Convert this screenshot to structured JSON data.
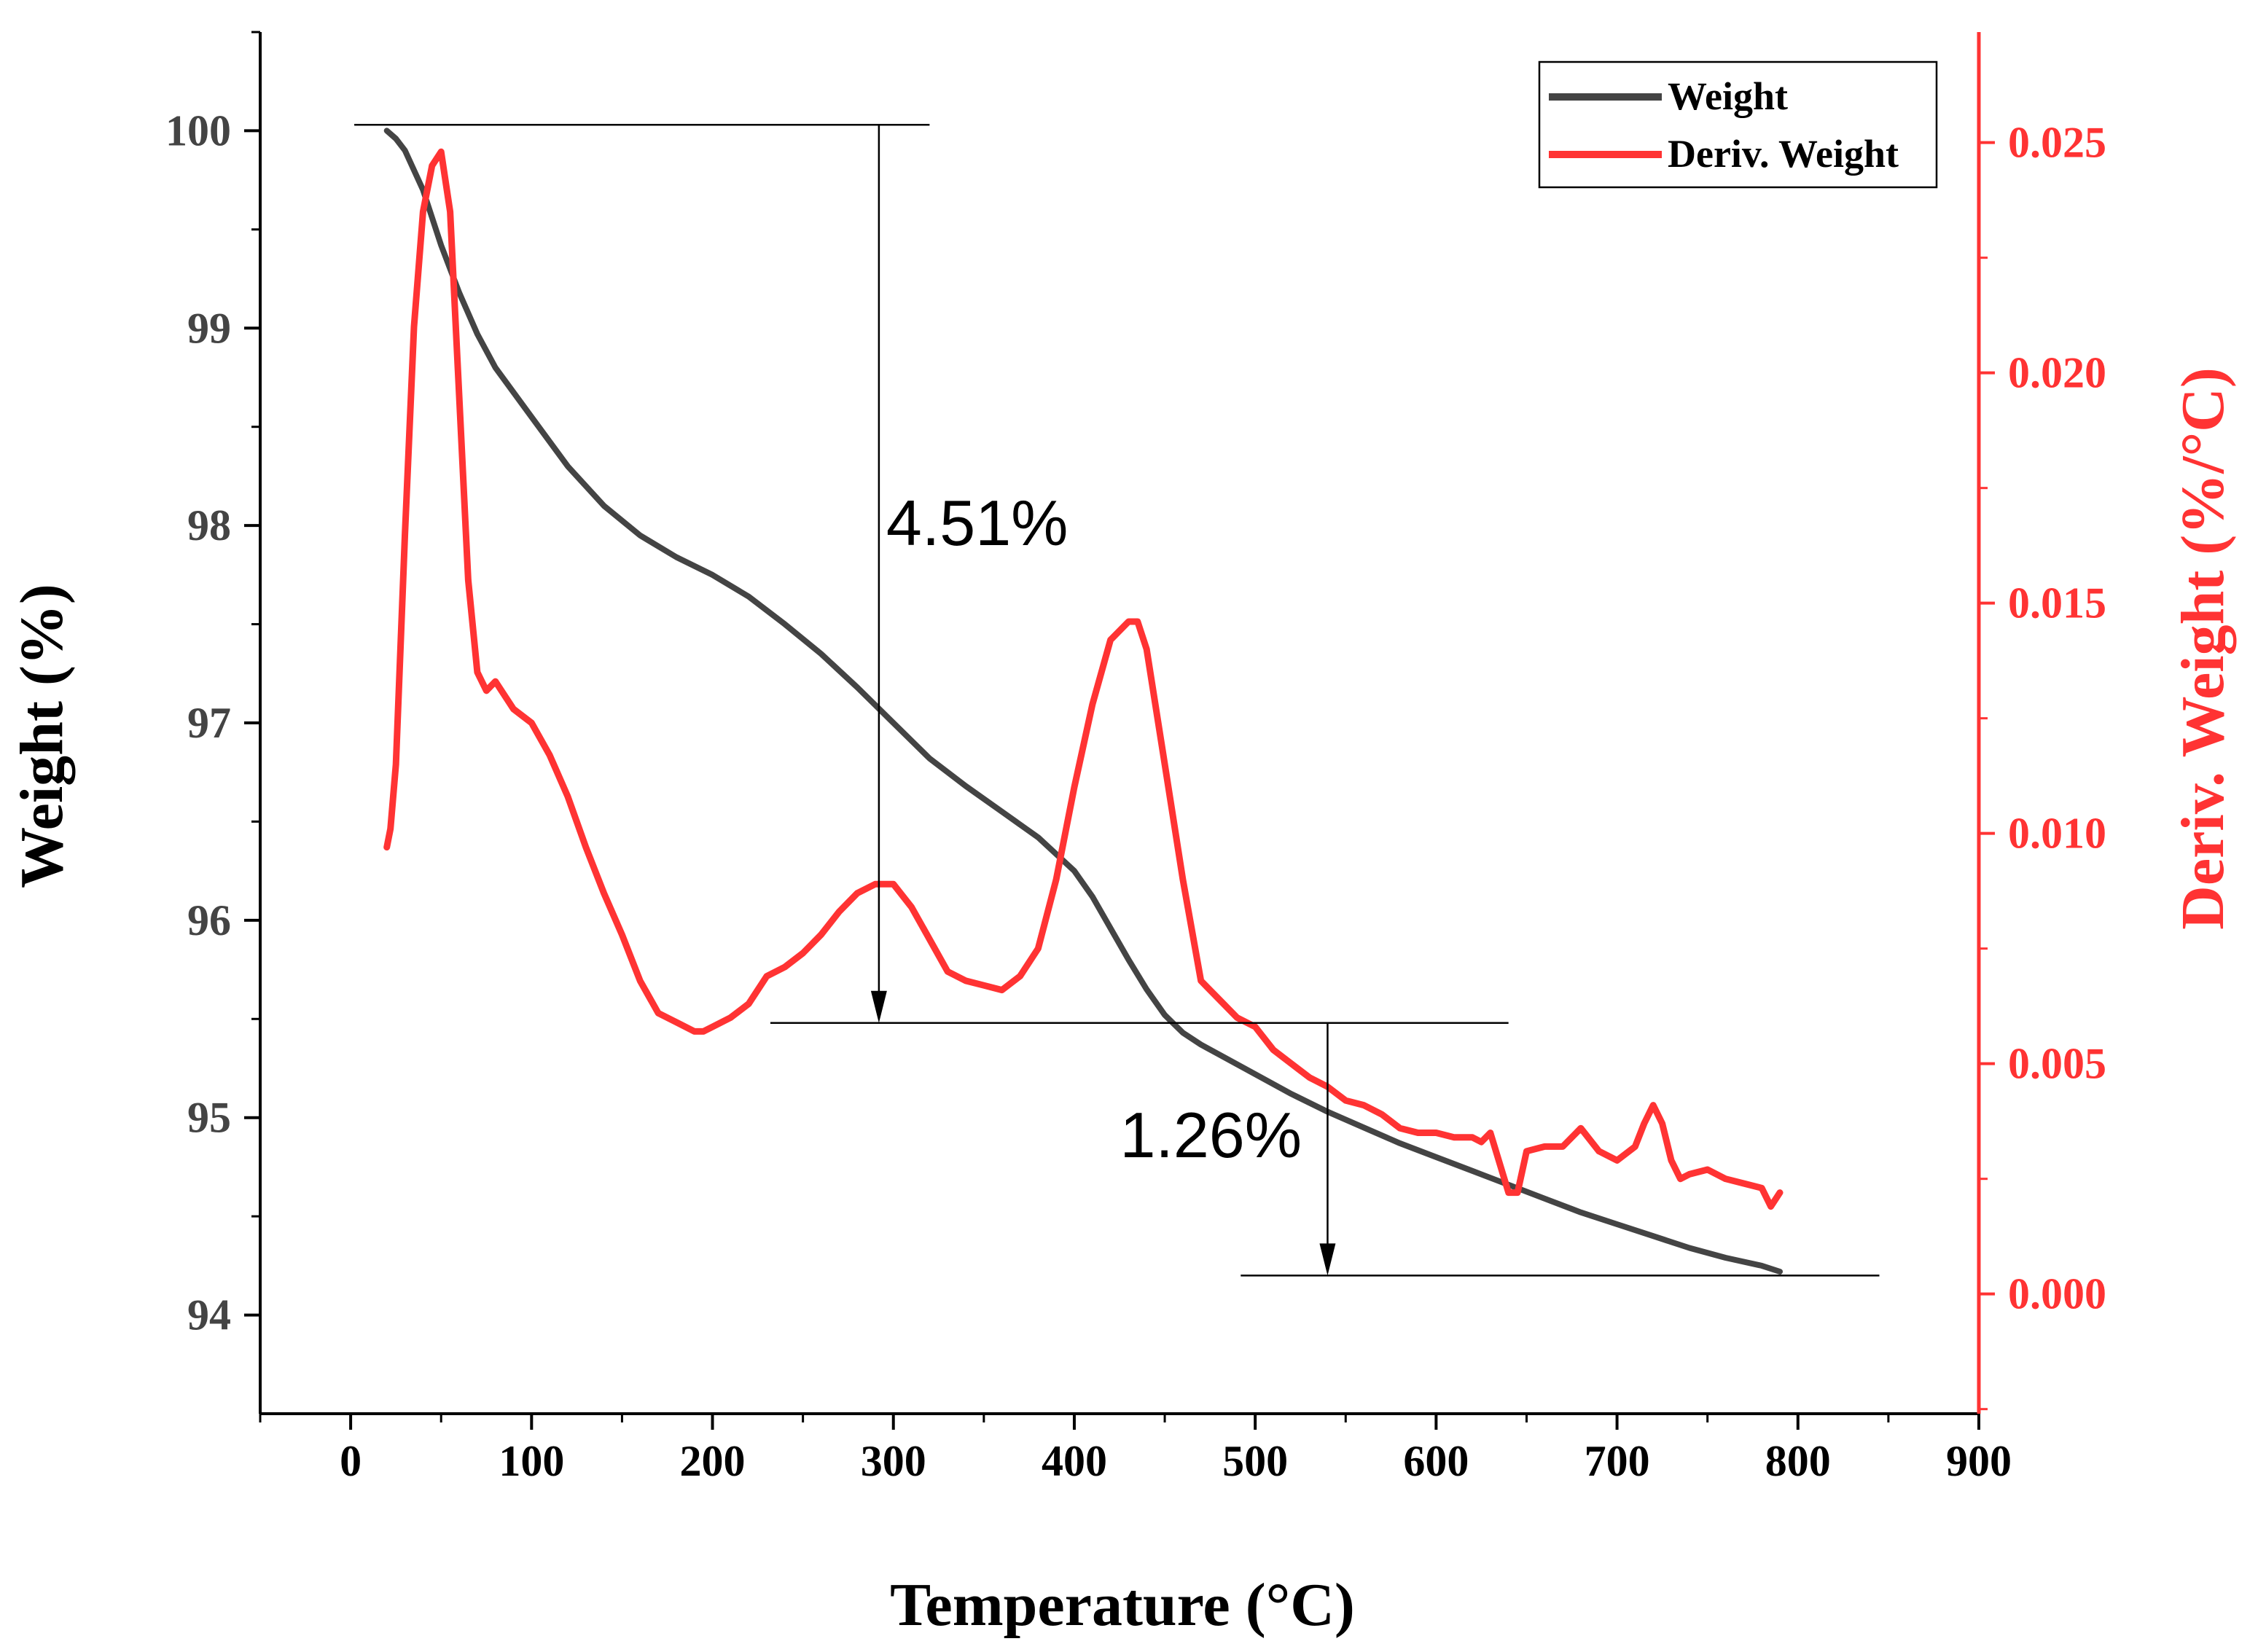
{
  "chart_data": {
    "type": "line",
    "xlabel": "Temperature (°C)",
    "ylabel": "Weight (%)",
    "y2label": "Deriv. Weight (%/°C)",
    "xlim": [
      -50,
      900
    ],
    "ylim": [
      93.5,
      100.5
    ],
    "y2lim": [
      -0.0026,
      0.0274
    ],
    "x_ticks": [
      0,
      100,
      200,
      300,
      400,
      500,
      600,
      700,
      800,
      900
    ],
    "y_ticks": [
      94,
      95,
      96,
      97,
      98,
      99,
      100
    ],
    "y2_ticks": [
      0.0,
      0.005,
      0.01,
      0.015,
      0.02,
      0.025
    ],
    "y2_tick_labels": [
      "0.000",
      "0.005",
      "0.010",
      "0.015",
      "0.020",
      "0.025"
    ],
    "colors": {
      "weight": "#444444",
      "deriv": "#ff3333",
      "axis_right": "#ff3333",
      "axis_left": "#000000"
    },
    "legend": {
      "position": "top-right",
      "entries": [
        "Weight",
        "Deriv. Weight"
      ]
    },
    "series": [
      {
        "name": "Weight",
        "axis": "left",
        "x": [
          20,
          25,
          30,
          40,
          50,
          60,
          70,
          80,
          100,
          120,
          140,
          160,
          180,
          200,
          220,
          240,
          260,
          280,
          300,
          320,
          340,
          360,
          380,
          400,
          410,
          420,
          430,
          440,
          450,
          460,
          470,
          480,
          500,
          520,
          540,
          560,
          580,
          600,
          620,
          640,
          660,
          680,
          700,
          720,
          740,
          760,
          780,
          790
        ],
        "values": [
          100.0,
          99.96,
          99.9,
          99.7,
          99.42,
          99.18,
          98.97,
          98.8,
          98.55,
          98.3,
          98.1,
          97.95,
          97.84,
          97.75,
          97.64,
          97.5,
          97.35,
          97.18,
          97.0,
          96.82,
          96.68,
          96.55,
          96.42,
          96.25,
          96.12,
          95.96,
          95.8,
          95.65,
          95.52,
          95.43,
          95.37,
          95.32,
          95.22,
          95.12,
          95.03,
          94.95,
          94.87,
          94.8,
          94.73,
          94.66,
          94.59,
          94.52,
          94.46,
          94.4,
          94.34,
          94.29,
          94.25,
          94.22
        ]
      },
      {
        "name": "Deriv. Weight",
        "axis": "right",
        "x": [
          20,
          22,
          25,
          30,
          35,
          40,
          45,
          50,
          55,
          60,
          65,
          70,
          75,
          80,
          85,
          90,
          100,
          110,
          120,
          130,
          140,
          150,
          160,
          170,
          180,
          190,
          195,
          200,
          210,
          220,
          230,
          240,
          250,
          260,
          270,
          280,
          290,
          300,
          310,
          320,
          330,
          340,
          350,
          360,
          370,
          380,
          390,
          400,
          410,
          420,
          430,
          435,
          440,
          450,
          460,
          470,
          480,
          490,
          500,
          510,
          520,
          530,
          540,
          550,
          560,
          570,
          580,
          590,
          600,
          610,
          620,
          625,
          630,
          640,
          645,
          650,
          660,
          670,
          680,
          690,
          700,
          710,
          715,
          720,
          725,
          730,
          735,
          740,
          750,
          760,
          770,
          780,
          785,
          790
        ],
        "values": [
          0.0097,
          0.0101,
          0.0115,
          0.0165,
          0.021,
          0.0235,
          0.0245,
          0.0248,
          0.0235,
          0.0195,
          0.0155,
          0.0135,
          0.0131,
          0.0133,
          0.013,
          0.0127,
          0.0124,
          0.0117,
          0.0108,
          0.0097,
          0.0087,
          0.0078,
          0.0068,
          0.0061,
          0.0059,
          0.0057,
          0.0057,
          0.0058,
          0.006,
          0.0063,
          0.0069,
          0.0071,
          0.0074,
          0.0078,
          0.0083,
          0.0087,
          0.0089,
          0.0089,
          0.0084,
          0.0077,
          0.007,
          0.0068,
          0.0067,
          0.0066,
          0.0069,
          0.0075,
          0.009,
          0.011,
          0.0128,
          0.0142,
          0.0146,
          0.0146,
          0.014,
          0.0115,
          0.009,
          0.0068,
          0.0064,
          0.006,
          0.0058,
          0.0053,
          0.005,
          0.0047,
          0.0045,
          0.0042,
          0.0041,
          0.0039,
          0.0036,
          0.0035,
          0.0035,
          0.0034,
          0.0034,
          0.0033,
          0.0035,
          0.0022,
          0.0022,
          0.0031,
          0.0032,
          0.0032,
          0.0036,
          0.0031,
          0.0029,
          0.0032,
          0.0037,
          0.0041,
          0.0037,
          0.0029,
          0.0025,
          0.0026,
          0.0027,
          0.0025,
          0.0024,
          0.0023,
          0.0019,
          0.0022
        ]
      }
    ],
    "annotations": [
      {
        "text": "4.51%",
        "x_from": 292,
        "y_from": 100.03,
        "x_to": 292,
        "y_to": 95.48,
        "h_lines": [
          {
            "x1": 2,
            "x2": 320,
            "y": 100.03
          },
          {
            "x1": 232,
            "x2": 640,
            "y": 95.48
          }
        ]
      },
      {
        "text": "1.26%",
        "x_from": 540,
        "y_from": 95.48,
        "x_to": 540,
        "y_to": 94.2,
        "h_lines": [
          {
            "x1": 492,
            "x2": 845,
            "y": 94.2
          }
        ]
      }
    ]
  }
}
